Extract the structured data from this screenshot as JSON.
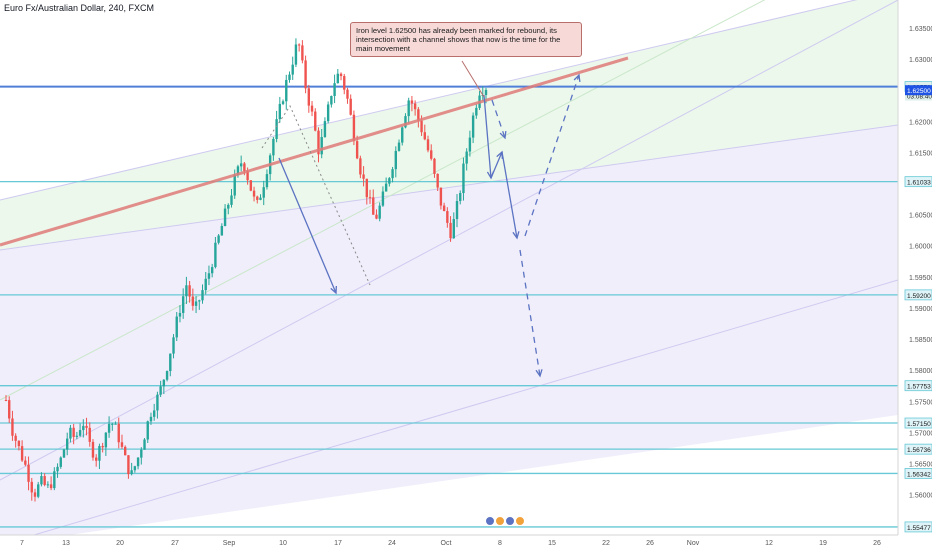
{
  "title": "Euro Fx/Australian Dollar, 240, FXCM",
  "annotation": "Iron level 1.62500 has already been marked for rebound, its intersection with a channel shows that now is the time for the main movement",
  "colors": {
    "up": "#26a69a",
    "down": "#ef5350",
    "level": "#67c8d6",
    "trendline": "#e07b78",
    "arrow": "#5b73c2",
    "price_badge": "#1e53e5",
    "level_badge_bg": "#dff4f8",
    "channel_fill_green": "#eaf7ea",
    "channel_fill_violet": "#eeecfb"
  },
  "chart_data": {
    "type": "candlestick",
    "symbol": "Euro Fx/Australian Dollar",
    "timeframe": "240",
    "source": "FXCM",
    "ylim": [
      1.5535,
      1.6395
    ],
    "y_ticks": [
      "1.63500",
      "1.63000",
      "1.62000",
      "1.61500",
      "1.60500",
      "1.60000",
      "1.59500",
      "1.59000",
      "1.58500",
      "1.58000",
      "1.57500",
      "1.57000",
      "1.56500",
      "1.56000",
      "1.55500"
    ],
    "x_ticks": [
      "7",
      "13",
      "20",
      "27",
      "Sep",
      "10",
      "17",
      "24",
      "Oct",
      "8",
      "15",
      "22",
      "26",
      "Nov",
      "12",
      "19",
      "26"
    ],
    "levels": [
      {
        "value": 1.62558,
        "label": "1.62558",
        "badge": "cur"
      },
      {
        "value": 1.6103,
        "label": "1.61033",
        "badge": "level"
      },
      {
        "value": 1.5921,
        "label": "1.59200",
        "badge": "level"
      },
      {
        "value": 1.5775,
        "label": "1.57753",
        "badge": "level"
      },
      {
        "value": 1.5715,
        "label": "1.57150",
        "badge": "level"
      },
      {
        "value": 1.5673,
        "label": "1.56736",
        "badge": "level"
      },
      {
        "value": 1.5634,
        "label": "1.56342",
        "badge": "level"
      },
      {
        "value": 1.5548,
        "label": "1.55477",
        "badge": "level"
      }
    ],
    "current_price": "1.62558",
    "countdown": "03:08:40",
    "pivot_level": "1.62500",
    "pivot_value": 1.625,
    "candles_path": [
      1.5752,
      1.57,
      1.567,
      1.564,
      1.56,
      1.562,
      1.561,
      1.563,
      1.566,
      1.57,
      1.569,
      1.572,
      1.568,
      1.566,
      1.569,
      1.572,
      1.57,
      1.566,
      1.563,
      1.566,
      1.57,
      1.574,
      1.576,
      1.58,
      1.585,
      1.59,
      1.594,
      1.589,
      1.592,
      1.595,
      1.599,
      1.603,
      1.607,
      1.611,
      1.614,
      1.61,
      1.606,
      1.61,
      1.615,
      1.62,
      1.625,
      1.629,
      1.633,
      1.626,
      1.621,
      1.615,
      1.62,
      1.626,
      1.628,
      1.624,
      1.618,
      1.612,
      1.608,
      1.604,
      1.607,
      1.611,
      1.615,
      1.62,
      1.624,
      1.621,
      1.618,
      1.614,
      1.609,
      1.605,
      1.602,
      1.607,
      1.614,
      1.62,
      1.625,
      1.6256
    ]
  }
}
